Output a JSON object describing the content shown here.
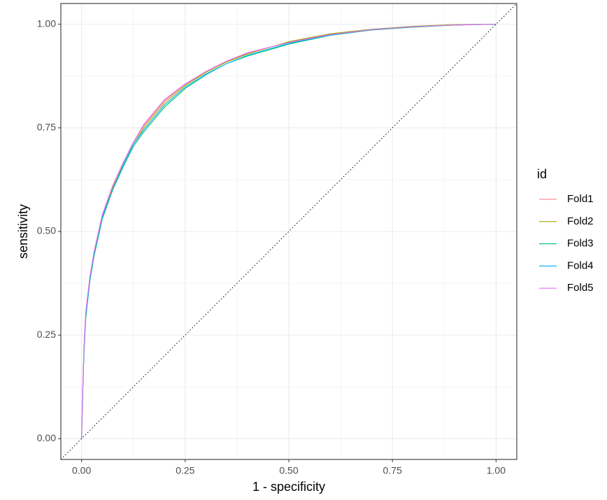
{
  "chart_data": {
    "type": "line",
    "xlabel": "1 - specificity",
    "ylabel": "sensitivity",
    "legend_title": "id",
    "x": [
      0,
      0.003,
      0.006,
      0.01,
      0.02,
      0.03,
      0.05,
      0.075,
      0.1,
      0.125,
      0.15,
      0.2,
      0.25,
      0.3,
      0.35,
      0.4,
      0.5,
      0.6,
      0.7,
      0.8,
      0.9,
      1.0
    ],
    "series": [
      {
        "name": "Fold1",
        "color": "#F8766D",
        "values": [
          0,
          0.12,
          0.22,
          0.3,
          0.39,
          0.45,
          0.54,
          0.61,
          0.665,
          0.715,
          0.755,
          0.815,
          0.855,
          0.885,
          0.91,
          0.93,
          0.957,
          0.976,
          0.987,
          0.994,
          0.998,
          1.0
        ]
      },
      {
        "name": "Fold2",
        "color": "#A3A500",
        "values": [
          0,
          0.12,
          0.22,
          0.3,
          0.385,
          0.445,
          0.535,
          0.605,
          0.66,
          0.71,
          0.75,
          0.81,
          0.852,
          0.884,
          0.909,
          0.928,
          0.958,
          0.977,
          0.988,
          0.995,
          0.999,
          1.0
        ]
      },
      {
        "name": "Fold3",
        "color": "#00BF7D",
        "values": [
          0,
          0.12,
          0.21,
          0.29,
          0.38,
          0.44,
          0.53,
          0.6,
          0.655,
          0.705,
          0.74,
          0.8,
          0.845,
          0.878,
          0.905,
          0.923,
          0.952,
          0.973,
          0.986,
          0.993,
          0.998,
          1.0
        ]
      },
      {
        "name": "Fold4",
        "color": "#00B0F6",
        "values": [
          0,
          0.12,
          0.215,
          0.295,
          0.385,
          0.445,
          0.535,
          0.6,
          0.66,
          0.71,
          0.745,
          0.805,
          0.848,
          0.88,
          0.905,
          0.925,
          0.954,
          0.974,
          0.987,
          0.994,
          0.998,
          1.0
        ]
      },
      {
        "name": "Fold5",
        "color": "#E76BF3",
        "values": [
          0,
          0.13,
          0.225,
          0.305,
          0.39,
          0.45,
          0.54,
          0.61,
          0.665,
          0.715,
          0.758,
          0.818,
          0.856,
          0.886,
          0.911,
          0.931,
          0.956,
          0.975,
          0.987,
          0.994,
          0.998,
          1.0
        ]
      }
    ],
    "xlim": [
      -0.05,
      1.05
    ],
    "ylim": [
      -0.05,
      1.05
    ],
    "xticks": [
      {
        "value": 0,
        "label": "0.00"
      },
      {
        "value": 0.25,
        "label": "0.25"
      },
      {
        "value": 0.5,
        "label": "0.50"
      },
      {
        "value": 0.75,
        "label": "0.75"
      },
      {
        "value": 1,
        "label": "1.00"
      }
    ],
    "yticks": [
      {
        "value": 0,
        "label": "0.00"
      },
      {
        "value": 0.25,
        "label": "0.25"
      },
      {
        "value": 0.5,
        "label": "0.50"
      },
      {
        "value": 0.75,
        "label": "0.75"
      },
      {
        "value": 1,
        "label": "1.00"
      }
    ],
    "grid": true
  }
}
